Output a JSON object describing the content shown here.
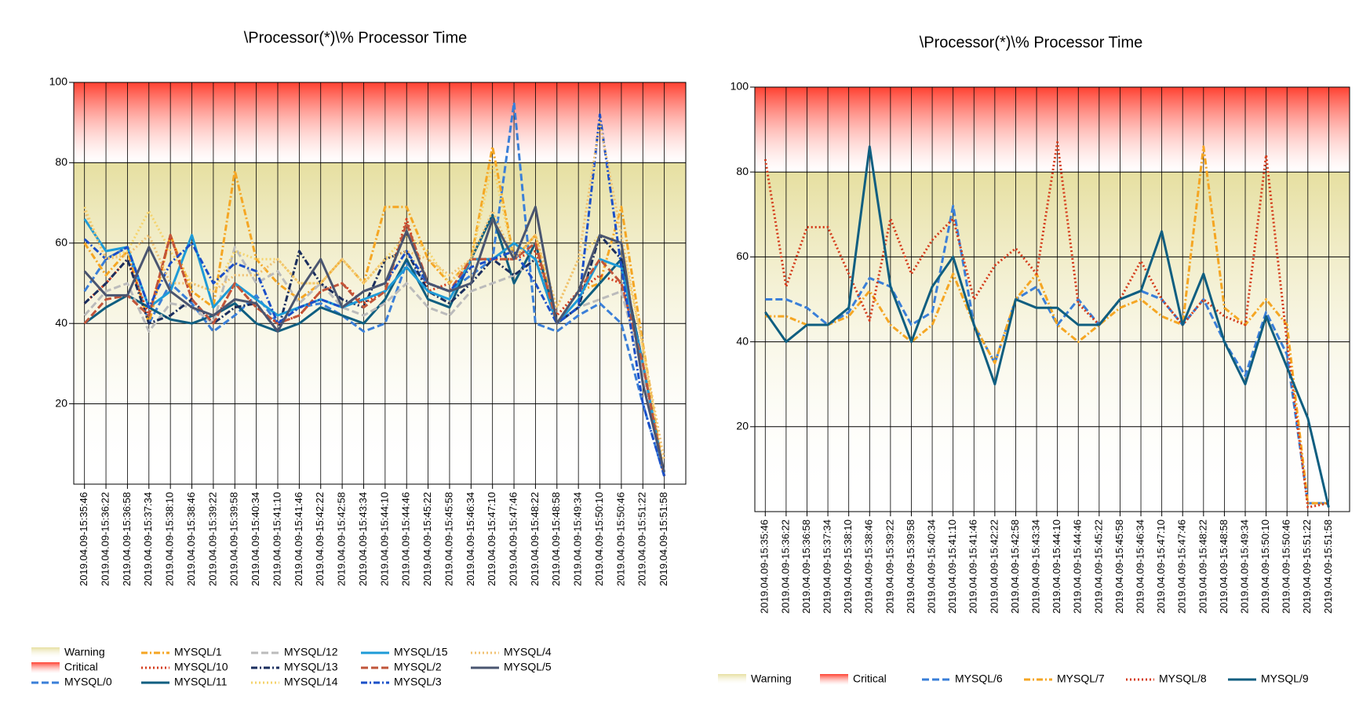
{
  "chart_data": [
    {
      "type": "line",
      "title": "\\Processor(*)\\% Processor Time",
      "categories": [
        "2019.04.09-15:35:46",
        "2019.04.09-15:36:22",
        "2019.04.09-15:36:58",
        "2019.04.09-15:37:34",
        "2019.04.09-15:38:10",
        "2019.04.09-15:38:46",
        "2019.04.09-15:39:22",
        "2019.04.09-15:39:58",
        "2019.04.09-15:40:34",
        "2019.04.09-15:41:10",
        "2019.04.09-15:41:46",
        "2019.04.09-15:42:22",
        "2019.04.09-15:42:58",
        "2019.04.09-15:43:34",
        "2019.04.09-15:44:10",
        "2019.04.09-15:44:46",
        "2019.04.09-15:45:22",
        "2019.04.09-15:45:58",
        "2019.04.09-15:46:34",
        "2019.04.09-15:47:10",
        "2019.04.09-15:47:46",
        "2019.04.09-15:48:22",
        "2019.04.09-15:48:58",
        "2019.04.09-15:49:34",
        "2019.04.09-15:50:10",
        "2019.04.09-15:50:46",
        "2019.04.09-15:51:22",
        "2019.04.09-15:51:58"
      ],
      "ylim": [
        0,
        100
      ],
      "yticks": [
        20,
        40,
        60,
        80,
        100
      ],
      "grid": true,
      "legend": "bottom",
      "bands": [
        {
          "name": "Warning",
          "from": 0,
          "to": 80,
          "color": "#e6dfa0"
        },
        {
          "name": "Critical",
          "from": 80,
          "to": 100,
          "color": "#ff4030"
        }
      ],
      "series": [
        {
          "name": "MYSQL/0",
          "color": "#3a7fd8",
          "dash": "dash",
          "values": [
            48,
            56,
            59,
            40,
            50,
            45,
            38,
            42,
            47,
            40,
            44,
            45,
            42,
            38,
            40,
            55,
            50,
            48,
            52,
            56,
            95,
            40,
            38,
            42,
            45,
            40,
            20,
            2
          ]
        },
        {
          "name": "MYSQL/1",
          "color": "#f5a623",
          "dash": "dashdot",
          "values": [
            60,
            52,
            58,
            40,
            62,
            48,
            44,
            78,
            56,
            50,
            46,
            50,
            56,
            50,
            69,
            69,
            56,
            50,
            56,
            84,
            56,
            62,
            40,
            48,
            50,
            69,
            35,
            2
          ]
        },
        {
          "name": "MYSQL/10",
          "color": "#d43a1a",
          "dash": "dot",
          "values": [
            45,
            50,
            56,
            42,
            62,
            46,
            40,
            50,
            44,
            40,
            42,
            48,
            50,
            45,
            48,
            66,
            48,
            50,
            56,
            56,
            56,
            58,
            42,
            48,
            52,
            50,
            30,
            2
          ]
        },
        {
          "name": "MYSQL/11",
          "color": "#0f5e80",
          "dash": "solid",
          "values": [
            40,
            44,
            47,
            44,
            41,
            40,
            42,
            45,
            40,
            38,
            40,
            44,
            42,
            40,
            46,
            56,
            46,
            44,
            56,
            67,
            50,
            60,
            40,
            44,
            50,
            56,
            30,
            2
          ]
        },
        {
          "name": "MYSQL/12",
          "color": "#bbbbbb",
          "dash": "dash",
          "values": [
            42,
            48,
            50,
            38,
            45,
            44,
            40,
            59,
            50,
            53,
            45,
            50,
            44,
            42,
            45,
            50,
            44,
            42,
            48,
            50,
            52,
            56,
            40,
            44,
            46,
            48,
            28,
            2
          ]
        },
        {
          "name": "MYSQL/13",
          "color": "#1a2e5e",
          "dash": "dashdot",
          "values": [
            45,
            50,
            56,
            40,
            42,
            46,
            40,
            44,
            45,
            38,
            58,
            50,
            46,
            44,
            56,
            58,
            48,
            45,
            50,
            56,
            52,
            56,
            40,
            44,
            62,
            56,
            30,
            2
          ]
        },
        {
          "name": "MYSQL/14",
          "color": "#f5d36b",
          "dash": "dot",
          "values": [
            69,
            56,
            58,
            68,
            58,
            50,
            48,
            58,
            56,
            56,
            50,
            50,
            56,
            50,
            56,
            62,
            58,
            50,
            56,
            80,
            56,
            62,
            44,
            56,
            62,
            60,
            34,
            2
          ]
        },
        {
          "name": "MYSQL/15",
          "color": "#1e9bd7",
          "dash": "solid",
          "values": [
            66,
            58,
            59,
            44,
            48,
            62,
            44,
            50,
            46,
            42,
            44,
            46,
            44,
            46,
            48,
            54,
            48,
            46,
            56,
            56,
            60,
            56,
            40,
            46,
            56,
            54,
            30,
            2
          ]
        },
        {
          "name": "MYSQL/2",
          "color": "#c0553a",
          "dash": "dash",
          "values": [
            40,
            46,
            47,
            42,
            62,
            46,
            40,
            50,
            44,
            40,
            42,
            48,
            50,
            44,
            48,
            65,
            50,
            48,
            56,
            56,
            56,
            60,
            40,
            48,
            56,
            50,
            30,
            2
          ]
        },
        {
          "name": "MYSQL/3",
          "color": "#1a4fc8",
          "dash": "dashdot",
          "values": [
            61,
            56,
            59,
            44,
            55,
            60,
            50,
            55,
            53,
            40,
            44,
            46,
            44,
            48,
            50,
            58,
            50,
            48,
            54,
            56,
            58,
            50,
            40,
            44,
            92,
            54,
            20,
            2
          ]
        },
        {
          "name": "MYSQL/4",
          "color": "#f0c070",
          "dash": "dot",
          "values": [
            68,
            56,
            57,
            62,
            50,
            50,
            48,
            52,
            52,
            56,
            50,
            50,
            56,
            50,
            56,
            58,
            56,
            52,
            56,
            68,
            56,
            62,
            44,
            56,
            90,
            62,
            34,
            6
          ]
        },
        {
          "name": "MYSQL/5",
          "color": "#4a5570",
          "dash": "solid",
          "values": [
            53,
            47,
            47,
            59,
            48,
            44,
            42,
            46,
            45,
            38,
            48,
            56,
            44,
            48,
            50,
            63,
            50,
            48,
            50,
            66,
            56,
            69,
            40,
            48,
            62,
            60,
            25,
            3
          ]
        }
      ]
    },
    {
      "type": "line",
      "title": "\\Processor(*)\\% Processor Time",
      "categories": [
        "2019.04.09-15:35:46",
        "2019.04.09-15:36:22",
        "2019.04.09-15:36:58",
        "2019.04.09-15:37:34",
        "2019.04.09-15:38:10",
        "2019.04.09-15:38:46",
        "2019.04.09-15:39:22",
        "2019.04.09-15:39:58",
        "2019.04.09-15:40:34",
        "2019.04.09-15:41:10",
        "2019.04.09-15:41:46",
        "2019.04.09-15:42:22",
        "2019.04.09-15:42:58",
        "2019.04.09-15:43:34",
        "2019.04.09-15:44:10",
        "2019.04.09-15:44:46",
        "2019.04.09-15:45:22",
        "2019.04.09-15:45:58",
        "2019.04.09-15:46:34",
        "2019.04.09-15:47:10",
        "2019.04.09-15:47:46",
        "2019.04.09-15:48:22",
        "2019.04.09-15:48:58",
        "2019.04.09-15:49:34",
        "2019.04.09-15:50:10",
        "2019.04.09-15:50:46",
        "2019.04.09-15:51:22",
        "2019.04.09-15:51:58"
      ],
      "ylim": [
        0,
        100
      ],
      "yticks": [
        20,
        40,
        60,
        80,
        100
      ],
      "grid": true,
      "legend": "bottom",
      "bands": [
        {
          "name": "Warning",
          "from": 0,
          "to": 80,
          "color": "#e6dfa0"
        },
        {
          "name": "Critical",
          "from": 80,
          "to": 100,
          "color": "#ff4030"
        }
      ],
      "series": [
        {
          "name": "MYSQL/6",
          "color": "#3a7fd8",
          "dash": "dash",
          "values": [
            50,
            50,
            48,
            44,
            47,
            55,
            53,
            44,
            47,
            72,
            44,
            35,
            50,
            53,
            44,
            50,
            44,
            50,
            52,
            50,
            44,
            50,
            40,
            32,
            47,
            37,
            2,
            2
          ]
        },
        {
          "name": "MYSQL/7",
          "color": "#f5a623",
          "dash": "dashdot",
          "values": [
            46,
            46,
            44,
            44,
            46,
            52,
            44,
            40,
            44,
            56,
            44,
            35,
            50,
            56,
            44,
            40,
            44,
            48,
            50,
            46,
            44,
            86,
            48,
            44,
            50,
            44,
            2,
            2
          ]
        },
        {
          "name": "MYSQL/8",
          "color": "#d43a1a",
          "dash": "dot",
          "values": [
            83,
            53,
            67,
            67,
            56,
            45,
            69,
            56,
            64,
            69,
            50,
            58,
            62,
            56,
            87,
            49,
            44,
            50,
            59,
            50,
            44,
            50,
            46,
            44,
            84,
            40,
            1,
            2
          ]
        },
        {
          "name": "MYSQL/9",
          "color": "#0f5e80",
          "dash": "solid",
          "values": [
            47,
            40,
            44,
            44,
            48,
            86,
            53,
            40,
            53,
            60,
            44,
            30,
            50,
            48,
            48,
            44,
            44,
            50,
            52,
            66,
            44,
            56,
            40,
            30,
            46,
            34,
            22,
            1
          ]
        }
      ]
    }
  ]
}
